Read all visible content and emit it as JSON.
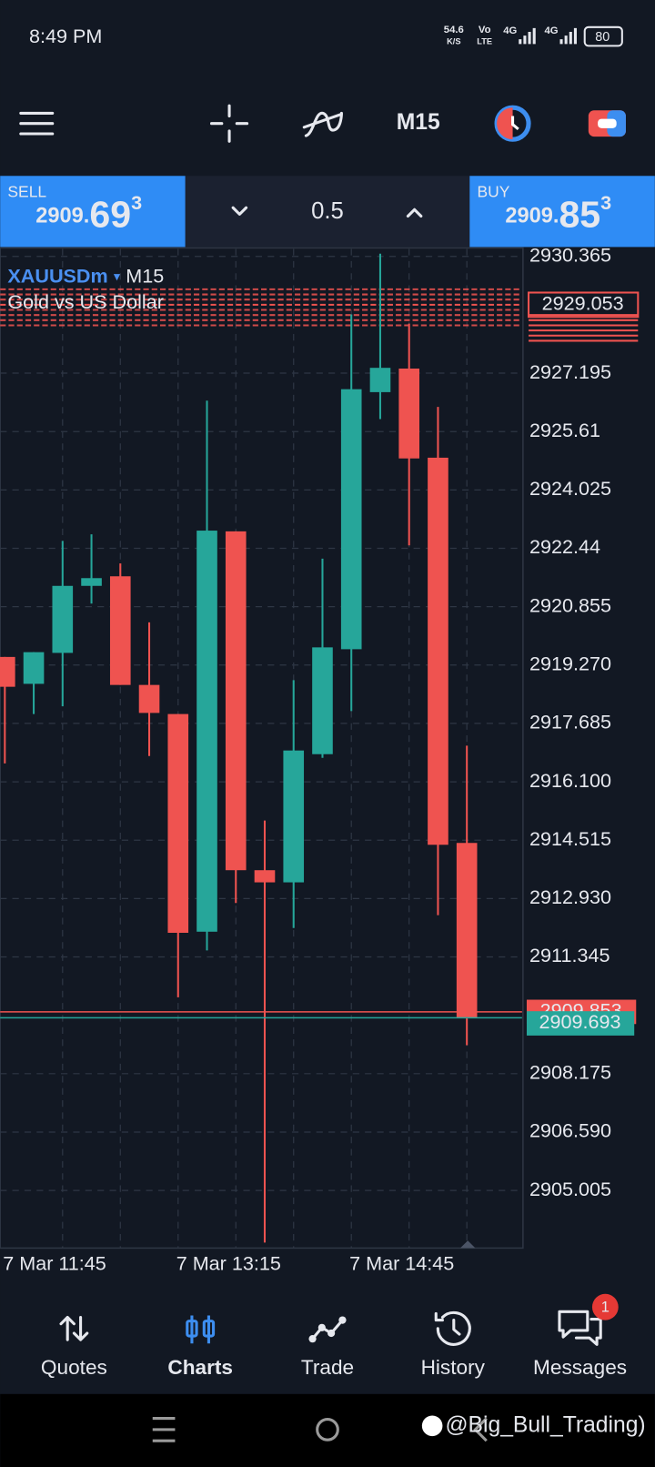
{
  "status_bar": {
    "time": "8:49 PM",
    "speed": "54.6",
    "speed_unit": "K/S",
    "volte_top": "Vo",
    "volte_bottom": "LTE",
    "network_1": "4G",
    "network_2": "4G",
    "battery": "80"
  },
  "toolbar": {
    "timeframe": "M15"
  },
  "trade_panel": {
    "sell": {
      "label": "SELL",
      "price_prefix": "2909.",
      "price_big": "69",
      "price_sup": "3"
    },
    "volume": "0.5",
    "buy": {
      "label": "BUY",
      "price_prefix": "2909.",
      "price_big": "85",
      "price_sup": "3"
    }
  },
  "chart_data": {
    "type": "candlestick",
    "symbol": "XAUUSDm",
    "timeframe": "M15",
    "subtitle": "Gold vs US Dollar",
    "categories": [
      "7 Mar 11:45",
      null,
      null,
      null,
      null,
      null,
      "7 Mar 13:15",
      null,
      null,
      null,
      null,
      null,
      "7 Mar 14:45",
      null,
      null,
      null,
      null
    ],
    "open": [
      2919.49,
      2918.76,
      2919.6,
      2921.42,
      2921.68,
      2918.73,
      2917.94,
      2912.03,
      2922.9,
      2913.7,
      2913.37,
      2916.85,
      2919.7,
      2926.68,
      2927.32,
      2924.9,
      2914.44
    ],
    "high": [
      2919.49,
      2919.62,
      2922.64,
      2922.82,
      2922.03,
      2920.43,
      2917.94,
      2926.45,
      2922.9,
      2915.05,
      2918.86,
      2922.16,
      2928.79,
      2930.44,
      2928.54,
      2926.28,
      2917.08
    ],
    "low": [
      2916.6,
      2917.94,
      2918.15,
      2920.94,
      2918.73,
      2916.8,
      2910.25,
      2911.52,
      2912.81,
      2903.59,
      2912.13,
      2916.75,
      2918.02,
      2925.95,
      2922.52,
      2912.48,
      2908.95
    ],
    "close": [
      2918.68,
      2919.62,
      2921.42,
      2921.63,
      2918.73,
      2917.97,
      2912.0,
      2922.92,
      2913.7,
      2913.37,
      2916.95,
      2919.75,
      2926.76,
      2927.34,
      2924.88,
      2914.39,
      2909.69
    ],
    "up_color": "#26a69a",
    "down_color": "#ef5350",
    "ylim": [
      2903.44,
      2930.57
    ],
    "yticks": [
      2930.365,
      2927.195,
      2925.61,
      2924.025,
      2922.44,
      2920.855,
      {
        "value": 2919.27,
        "label": "2919.270"
      },
      2917.685,
      {
        "value": 2916.1,
        "label": "2916.100"
      },
      2914.515,
      {
        "value": 2912.93,
        "label": "2912.930"
      },
      2911.345,
      2908.175,
      {
        "value": 2906.59,
        "label": "2906.590"
      },
      2905.005
    ],
    "grid": true,
    "order_level": 2929.053,
    "ask": 2909.853,
    "bid": 2909.693
  },
  "bottom_nav": {
    "items": [
      "Quotes",
      "Charts",
      "Trade",
      "History",
      "Messages"
    ],
    "active": 1,
    "badge": "1"
  },
  "watermark": "@Big_Bull_Trading)"
}
